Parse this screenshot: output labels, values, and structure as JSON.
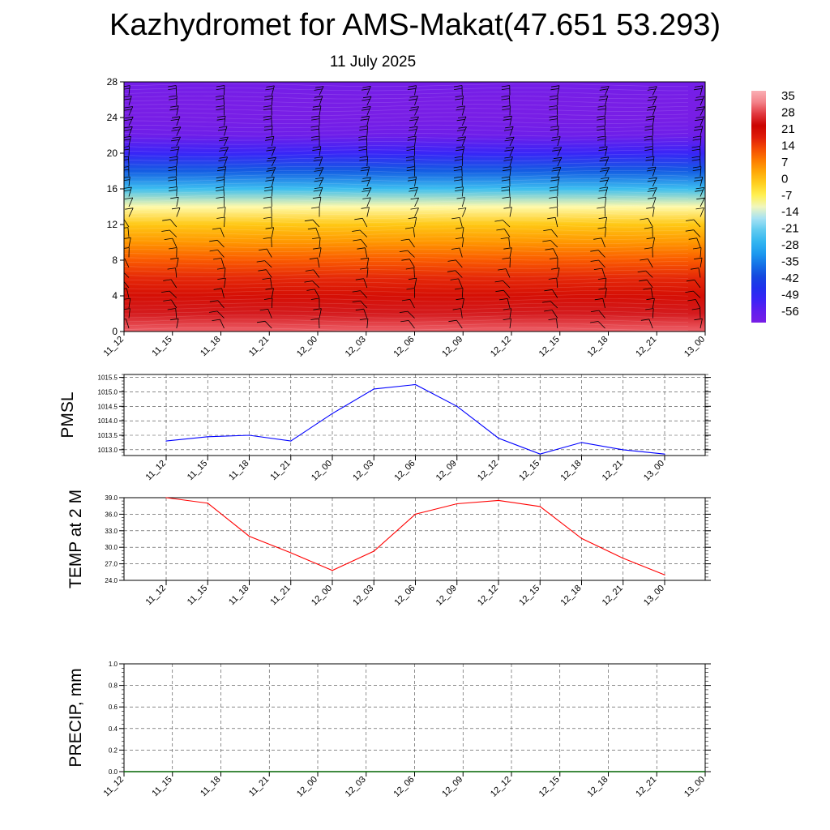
{
  "header": {
    "title": "Kazhydromet for AMS-Makat(47.651 53.293)",
    "date": "11 July 2025"
  },
  "colors": {
    "pmsl_line": "#0000ff",
    "temp_line": "#ff0000",
    "precip_line": "#006400",
    "grid": "#000000"
  },
  "chart_data": [
    {
      "type": "heatmap",
      "id": "upper-air",
      "x_tick_labels": [
        "11_12",
        "11_15",
        "11_18",
        "11_21",
        "12_00",
        "12_03",
        "12_06",
        "12_09",
        "12_12",
        "12_15",
        "12_18",
        "12_21",
        "13_00"
      ],
      "y_ticks": [
        0,
        4,
        8,
        12,
        16,
        20,
        24,
        28
      ],
      "ylim": [
        0,
        28
      ],
      "colorbar": {
        "labels": [
          "35",
          "28",
          "21",
          "14",
          "7",
          "0",
          "-7",
          "-14",
          "-21",
          "-28",
          "-35",
          "-42",
          "-49",
          "-56"
        ],
        "range": [
          -60,
          38
        ]
      },
      "temperature_profile": {
        "levels": [
          0,
          2,
          4,
          6,
          8,
          10,
          12,
          14,
          16,
          18,
          20,
          22,
          24,
          26,
          28
        ],
        "values": [
          31,
          26,
          21,
          17,
          12,
          6,
          0,
          -10,
          -24,
          -38,
          -50,
          -58,
          -60,
          -60,
          -59
        ]
      },
      "wind_barbs": true
    },
    {
      "type": "line",
      "id": "pmsl",
      "ylabel": "PMSL",
      "x_tick_labels": [
        "11_12",
        "11_15",
        "11_18",
        "11_21",
        "12_00",
        "12_03",
        "12_06",
        "12_09",
        "12_12",
        "12_15",
        "12_18",
        "12_21",
        "13_00"
      ],
      "y_ticks": [
        "1013.0",
        "1013.5",
        "1014.0",
        "1014.5",
        "1015.0",
        "1015.5"
      ],
      "ylim": [
        1012.8,
        1015.6
      ],
      "values": [
        1013.3,
        1013.45,
        1013.5,
        1013.3,
        1014.25,
        1015.1,
        1015.25,
        1014.5,
        1013.4,
        1012.85,
        1013.25,
        1013.0,
        1012.85
      ]
    },
    {
      "type": "line",
      "id": "temp2m",
      "ylabel": "TEMP at 2 M",
      "x_tick_labels": [
        "11_12",
        "11_15",
        "11_18",
        "11_21",
        "12_00",
        "12_03",
        "12_06",
        "12_09",
        "12_12",
        "12_15",
        "12_18",
        "12_21",
        "13_00"
      ],
      "y_ticks": [
        "24.0",
        "27.0",
        "30.0",
        "33.0",
        "36.0",
        "39.0"
      ],
      "ylim": [
        24,
        39
      ],
      "values": [
        39.0,
        38.0,
        32.0,
        29.0,
        25.8,
        29.3,
        36.0,
        37.9,
        38.5,
        37.4,
        31.6,
        28.0,
        25.0
      ]
    },
    {
      "type": "line",
      "id": "precip",
      "ylabel": "PRECIP, mm",
      "x_tick_labels": [
        "11_12",
        "11_15",
        "11_18",
        "11_21",
        "12_00",
        "12_03",
        "12_06",
        "12_09",
        "12_12",
        "12_15",
        "12_18",
        "12_21",
        "13_00"
      ],
      "y_ticks": [
        "0.0",
        "0.2",
        "0.4",
        "0.6",
        "0.8",
        "1.0"
      ],
      "ylim": [
        0,
        1
      ],
      "values": [
        0,
        0,
        0,
        0,
        0,
        0,
        0,
        0,
        0,
        0,
        0,
        0,
        0
      ]
    }
  ]
}
